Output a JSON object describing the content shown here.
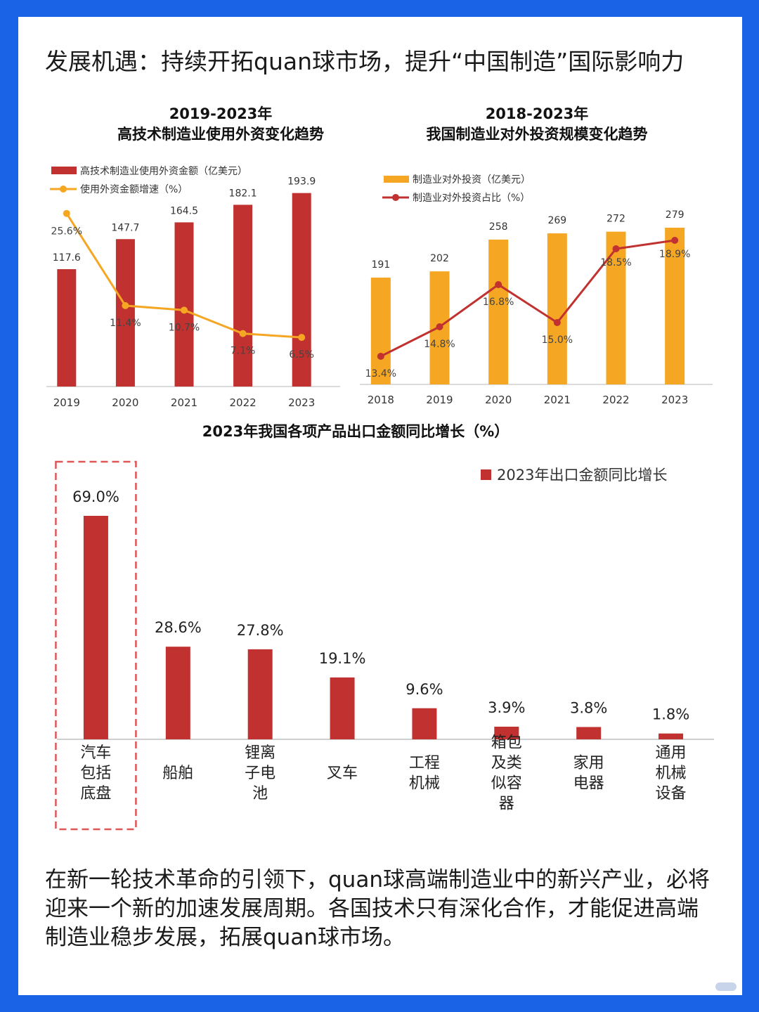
{
  "headline": "发展机遇：持续开拓quan球市场，提升“中国制造”国际影响力",
  "body_text": "在新一轮技术革命的引领下，quan球高端制造业中的新兴产业，必将迎来一个新的加速发展周期。各国技术只有深化合作，才能促进高端制造业稳步发展，拓展quan球市场。",
  "colors": {
    "red": "#c0312f",
    "orange": "#f5a623",
    "dark_red": "#c0312f",
    "axis": "#cfcfcf",
    "highlight_box": "#e05555"
  },
  "chart_data": [
    {
      "type": "bar",
      "title_line1": "2019-2023年",
      "title_line2": "高技术制造业使用外资变化趋势",
      "categories": [
        "2019",
        "2020",
        "2021",
        "2022",
        "2023"
      ],
      "series": [
        {
          "name": "高技术制造业使用外资金额（亿美元）",
          "type": "bar",
          "values": [
            117.6,
            147.7,
            164.5,
            182.1,
            193.9
          ],
          "labels": [
            "117.6",
            "147.7",
            "164.5",
            "182.1",
            "193.9"
          ],
          "color": "#c0312f"
        },
        {
          "name": "使用外资金额增速（%）",
          "type": "line",
          "values": [
            25.6,
            11.4,
            10.7,
            7.1,
            6.5
          ],
          "labels": [
            "25.6%",
            "11.4%",
            "10.7%",
            "7.1%",
            "6.5%"
          ],
          "color": "#f5a623"
        }
      ],
      "bar_ylim": [
        0,
        200
      ],
      "line_ylim": [
        0,
        30
      ],
      "legend_position": "top-left"
    },
    {
      "type": "bar",
      "title_line1": "2018-2023年",
      "title_line2": "我国制造业对外投资规模变化趋势",
      "categories": [
        "2018",
        "2019",
        "2020",
        "2021",
        "2022",
        "2023"
      ],
      "series": [
        {
          "name": "制造业对外投资（亿美元）",
          "type": "bar",
          "values": [
            191,
            202,
            258,
            269,
            272,
            279
          ],
          "labels": [
            "191",
            "202",
            "258",
            "269",
            "272",
            "279"
          ],
          "color": "#f5a623"
        },
        {
          "name": "制造业对外投资占比（%）",
          "type": "line",
          "values": [
            13.4,
            14.8,
            16.8,
            15.0,
            18.5,
            18.9
          ],
          "labels": [
            "13.4%",
            "14.8%",
            "16.8%",
            "15.0%",
            "18.5%",
            "18.9%"
          ],
          "color": "#c0312f"
        }
      ],
      "bar_ylim": [
        0,
        330
      ],
      "line_ylim": [
        12,
        20
      ],
      "legend_position": "top-left"
    },
    {
      "type": "bar",
      "title": "2023年我国各项产品出口金额同比增长（%）",
      "categories": [
        "汽车包括底盘",
        "船舶",
        "锂离子电池",
        "叉车",
        "工程机械",
        "箱包及类似容器",
        "家用电器",
        "通用机械设备"
      ],
      "category_lines": [
        [
          "汽车",
          "包括",
          "底盘"
        ],
        [
          "船舶"
        ],
        [
          "锂离",
          "子电",
          "池"
        ],
        [
          "叉车"
        ],
        [
          "工程",
          "机械"
        ],
        [
          "箱包",
          "及类",
          "似容",
          "器"
        ],
        [
          "家用",
          "电器"
        ],
        [
          "通用",
          "机械",
          "设备"
        ]
      ],
      "series": [
        {
          "name": "2023年出口金额同比增长",
          "values": [
            69.0,
            28.6,
            27.8,
            19.1,
            9.6,
            3.9,
            3.8,
            1.8
          ],
          "labels": [
            "69.0%",
            "28.6%",
            "27.8%",
            "19.1%",
            "9.6%",
            "3.9%",
            "3.8%",
            "1.8%"
          ],
          "color": "#c0312f"
        }
      ],
      "ylim": [
        0,
        69
      ],
      "highlighted_category": "汽车包括底盘",
      "legend_position": "top-right"
    }
  ]
}
